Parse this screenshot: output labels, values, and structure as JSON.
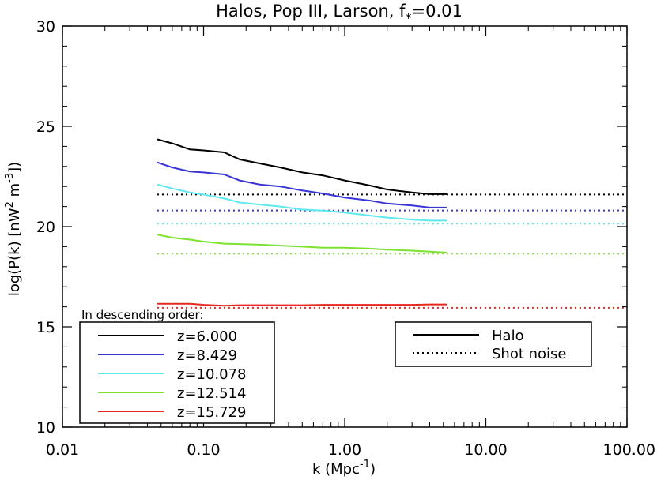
{
  "chart_data": {
    "type": "line",
    "title": "Halos, Pop III, Larson, f",
    "title_subscript": "*",
    "title_suffix": "=0.01",
    "xlabel": "k (Mpc",
    "xlabel_sup": "-1",
    "xlabel_suffix": ")",
    "ylabel": "log(P(k) [nW",
    "ylabel_sup1": "2",
    "ylabel_mid": " m",
    "ylabel_sup2": "-3",
    "ylabel_suffix": "])",
    "xscale": "log",
    "xlim": [
      0.01,
      100
    ],
    "ylim": [
      10,
      30
    ],
    "xticks": [
      0.01,
      0.1,
      1,
      10,
      100
    ],
    "xtick_labels": [
      "0.01",
      "0.10",
      "1.00",
      "10.00",
      "100.00"
    ],
    "yticks": [
      10,
      15,
      20,
      25,
      30
    ],
    "ytick_labels": [
      "10",
      "15",
      "20",
      "25",
      "30"
    ],
    "series": [
      {
        "name": "z=6.000",
        "color": "#000000",
        "halo": {
          "k": [
            0.047,
            0.06,
            0.08,
            0.1,
            0.14,
            0.18,
            0.25,
            0.35,
            0.5,
            0.7,
            1.0,
            1.5,
            2.0,
            3.0,
            4.0,
            5.3
          ],
          "logP": [
            24.35,
            24.15,
            23.85,
            23.8,
            23.7,
            23.35,
            23.15,
            22.95,
            22.7,
            22.55,
            22.3,
            22.05,
            21.85,
            21.7,
            21.62,
            21.62
          ]
        },
        "shot_noise": 21.6
      },
      {
        "name": "z=8.429",
        "color": "#3a35d4",
        "halo": {
          "k": [
            0.047,
            0.06,
            0.08,
            0.1,
            0.14,
            0.18,
            0.25,
            0.35,
            0.5,
            0.7,
            1.0,
            1.5,
            2.0,
            3.0,
            4.0,
            5.3
          ],
          "logP": [
            23.2,
            22.95,
            22.75,
            22.7,
            22.6,
            22.3,
            22.1,
            22.0,
            21.8,
            21.65,
            21.45,
            21.3,
            21.15,
            21.05,
            20.95,
            20.95
          ]
        },
        "shot_noise": 20.8
      },
      {
        "name": "z=10.078",
        "color": "#5ee8ef",
        "halo": {
          "k": [
            0.047,
            0.06,
            0.08,
            0.1,
            0.14,
            0.18,
            0.25,
            0.35,
            0.5,
            0.7,
            1.0,
            1.5,
            2.0,
            3.0,
            4.0,
            5.3
          ],
          "logP": [
            22.1,
            21.9,
            21.7,
            21.6,
            21.4,
            21.2,
            21.1,
            21.0,
            20.85,
            20.8,
            20.7,
            20.55,
            20.45,
            20.35,
            20.3,
            20.3
          ]
        },
        "shot_noise": 20.15
      },
      {
        "name": "z=12.514",
        "color": "#7ce22e",
        "halo": {
          "k": [
            0.047,
            0.06,
            0.08,
            0.1,
            0.14,
            0.18,
            0.25,
            0.35,
            0.5,
            0.7,
            1.0,
            1.5,
            2.0,
            3.0,
            4.0,
            5.3
          ],
          "logP": [
            19.6,
            19.45,
            19.35,
            19.25,
            19.15,
            19.13,
            19.1,
            19.05,
            19.0,
            18.95,
            18.95,
            18.9,
            18.85,
            18.8,
            18.75,
            18.7
          ]
        },
        "shot_noise": 18.65
      },
      {
        "name": "z=15.729",
        "color": "#e8281e",
        "halo": {
          "k": [
            0.047,
            0.06,
            0.08,
            0.1,
            0.14,
            0.18,
            0.25,
            0.35,
            0.5,
            0.7,
            1.0,
            1.5,
            2.0,
            3.0,
            4.0,
            5.3
          ],
          "logP": [
            16.15,
            16.15,
            16.15,
            16.1,
            16.05,
            16.08,
            16.08,
            16.08,
            16.08,
            16.1,
            16.1,
            16.1,
            16.1,
            16.1,
            16.12,
            16.12
          ]
        },
        "shot_noise": 15.95
      }
    ],
    "shot_noise_k_range": [
      0.047,
      100
    ],
    "legend_redshift": {
      "title": "In descending order:",
      "placement": "bottom-left",
      "entries": [
        "z=6.000",
        "z=8.429",
        "z=10.078",
        "z=12.514",
        "z=15.729"
      ]
    },
    "legend_style": {
      "placement": "bottom-right",
      "entries": [
        {
          "label": "Halo",
          "style": "solid"
        },
        {
          "label": "Shot noise",
          "style": "dotted"
        }
      ]
    }
  }
}
